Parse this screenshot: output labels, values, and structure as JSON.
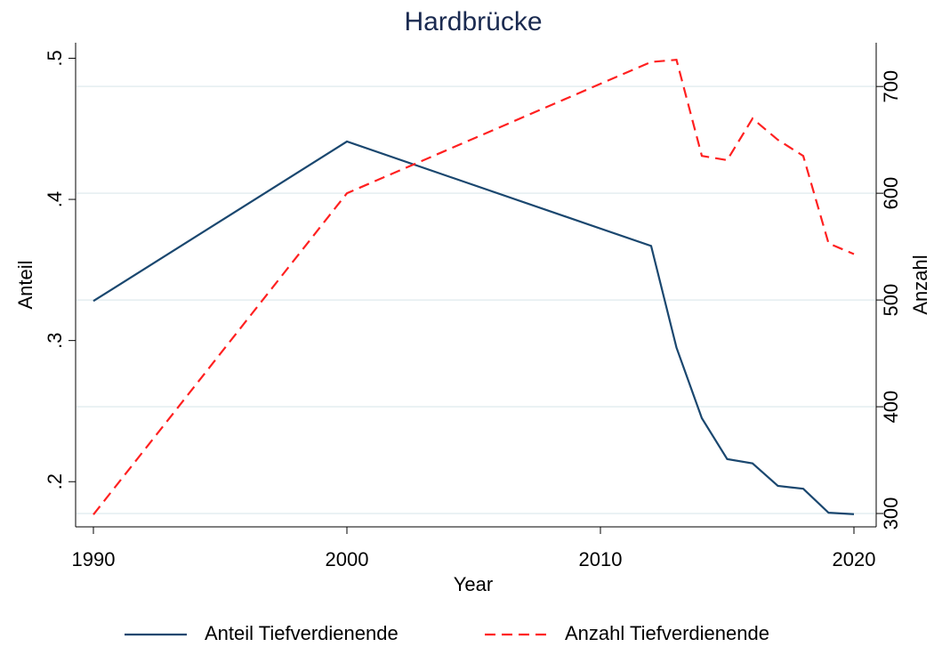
{
  "chart_data": {
    "type": "line",
    "title": "Hardbrücke",
    "x_label": "Year",
    "y_label": "Anteil",
    "y2_label": "Anzahl",
    "x": [
      1990,
      2000,
      2012,
      2013,
      2014,
      2015,
      2016,
      2017,
      2018,
      2019,
      2020
    ],
    "series": [
      {
        "name": "Anteil Tiefverdienende",
        "color": "#1a476f",
        "style": "solid",
        "values": [
          0.328,
          0.441,
          0.367,
          0.295,
          0.245,
          0.216,
          0.213,
          0.197,
          0.195,
          0.178,
          0.177
        ]
      },
      {
        "name": "Anzahl Tiefverdienende",
        "color": "#ff2020",
        "style": "dashed",
        "axis": "y2",
        "values": [
          299,
          600,
          723,
          725,
          635,
          631,
          670,
          650,
          635,
          553,
          543
        ]
      }
    ],
    "xlim": [
      1990,
      2020
    ],
    "xticks": [
      1990,
      2000,
      2010,
      2020
    ],
    "ylim": [
      0.168,
      0.511
    ],
    "yticks": [
      {
        "value": 0.2,
        "label": ".2"
      },
      {
        "value": 0.3,
        "label": ".3"
      },
      {
        "value": 0.4,
        "label": ".4"
      },
      {
        "value": 0.5,
        "label": ".5"
      }
    ],
    "y2lim": [
      287.5,
      741
    ],
    "y2ticks": [
      300,
      400,
      500,
      600,
      700
    ],
    "grid": "y2",
    "legend": "bottom"
  }
}
